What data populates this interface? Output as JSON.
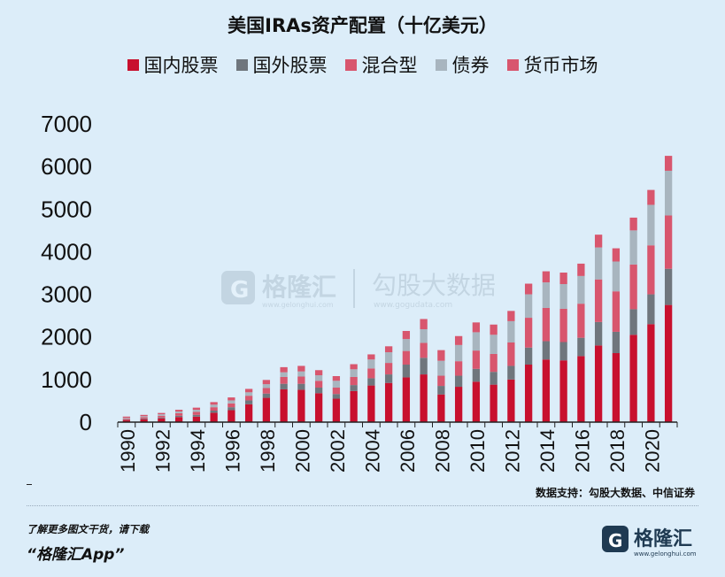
{
  "chart_data": {
    "type": "bar",
    "stacked": true,
    "title": "美国IRAs资产配置（十亿美元）",
    "categories": [
      "1990",
      "1991",
      "1992",
      "1993",
      "1994",
      "1995",
      "1996",
      "1997",
      "1998",
      "1999",
      "2000",
      "2001",
      "2002",
      "2003",
      "2004",
      "2005",
      "2006",
      "2007",
      "2008",
      "2009",
      "2010",
      "2011",
      "2012",
      "2013",
      "2014",
      "2015",
      "2016",
      "2017",
      "2018",
      "2019",
      "2020",
      "2021"
    ],
    "x_tick_labels": [
      "1990",
      "1992",
      "1994",
      "1996",
      "1998",
      "2000",
      "2002",
      "2004",
      "2006",
      "2008",
      "2010",
      "2012",
      "2014",
      "2016",
      "2018",
      "2020"
    ],
    "y_ticks": [
      "0",
      "1000",
      "2000",
      "3000",
      "4000",
      "5000",
      "6000",
      "7000"
    ],
    "ylim": [
      0,
      7000
    ],
    "legend_position": "top",
    "series": [
      {
        "name": "国内股票",
        "color": "#c8102e",
        "values": [
          50,
          70,
          90,
          120,
          130,
          220,
          280,
          420,
          570,
          770,
          760,
          680,
          550,
          730,
          860,
          920,
          1050,
          1120,
          650,
          830,
          950,
          880,
          1000,
          1350,
          1470,
          1450,
          1550,
          1800,
          1620,
          2050,
          2300,
          2750
        ]
      },
      {
        "name": "国外股票",
        "color": "#6f767d",
        "values": [
          10,
          15,
          20,
          30,
          40,
          50,
          70,
          90,
          100,
          130,
          140,
          130,
          110,
          140,
          170,
          200,
          300,
          390,
          200,
          260,
          300,
          300,
          320,
          400,
          430,
          430,
          430,
          550,
          500,
          600,
          700,
          850
        ]
      },
      {
        "name": "混合型",
        "color": "#d8566e",
        "values": [
          20,
          30,
          40,
          60,
          70,
          80,
          90,
          110,
          130,
          160,
          170,
          160,
          150,
          190,
          230,
          270,
          320,
          350,
          240,
          340,
          430,
          420,
          550,
          700,
          780,
          780,
          800,
          1000,
          950,
          1050,
          1150,
          1250
        ]
      },
      {
        "name": "债券",
        "color": "#a8b5bf",
        "values": [
          20,
          25,
          35,
          40,
          50,
          60,
          70,
          80,
          90,
          110,
          120,
          130,
          160,
          180,
          210,
          250,
          280,
          320,
          350,
          380,
          430,
          450,
          500,
          550,
          600,
          580,
          650,
          750,
          700,
          800,
          950,
          1050
        ]
      },
      {
        "name": "货币市场",
        "color": "#d8566e",
        "values": [
          30,
          30,
          30,
          40,
          50,
          60,
          70,
          80,
          100,
          120,
          130,
          120,
          110,
          120,
          120,
          140,
          190,
          240,
          250,
          210,
          230,
          240,
          240,
          250,
          260,
          270,
          290,
          300,
          310,
          300,
          350,
          350
        ]
      }
    ]
  },
  "source": "数据支持：勾股大数据、中信证券",
  "promo": {
    "line1": "了解更多图文干货，请下载",
    "line2": "“格隆汇App”"
  },
  "watermark": {
    "brand": "格隆汇",
    "brand_url": "www.gelonghui.com",
    "data_brand": "勾股大数据",
    "data_url": "www.gogudata.com"
  },
  "logo": {
    "brand": "格隆汇",
    "url": "www.gelonghui.com"
  }
}
